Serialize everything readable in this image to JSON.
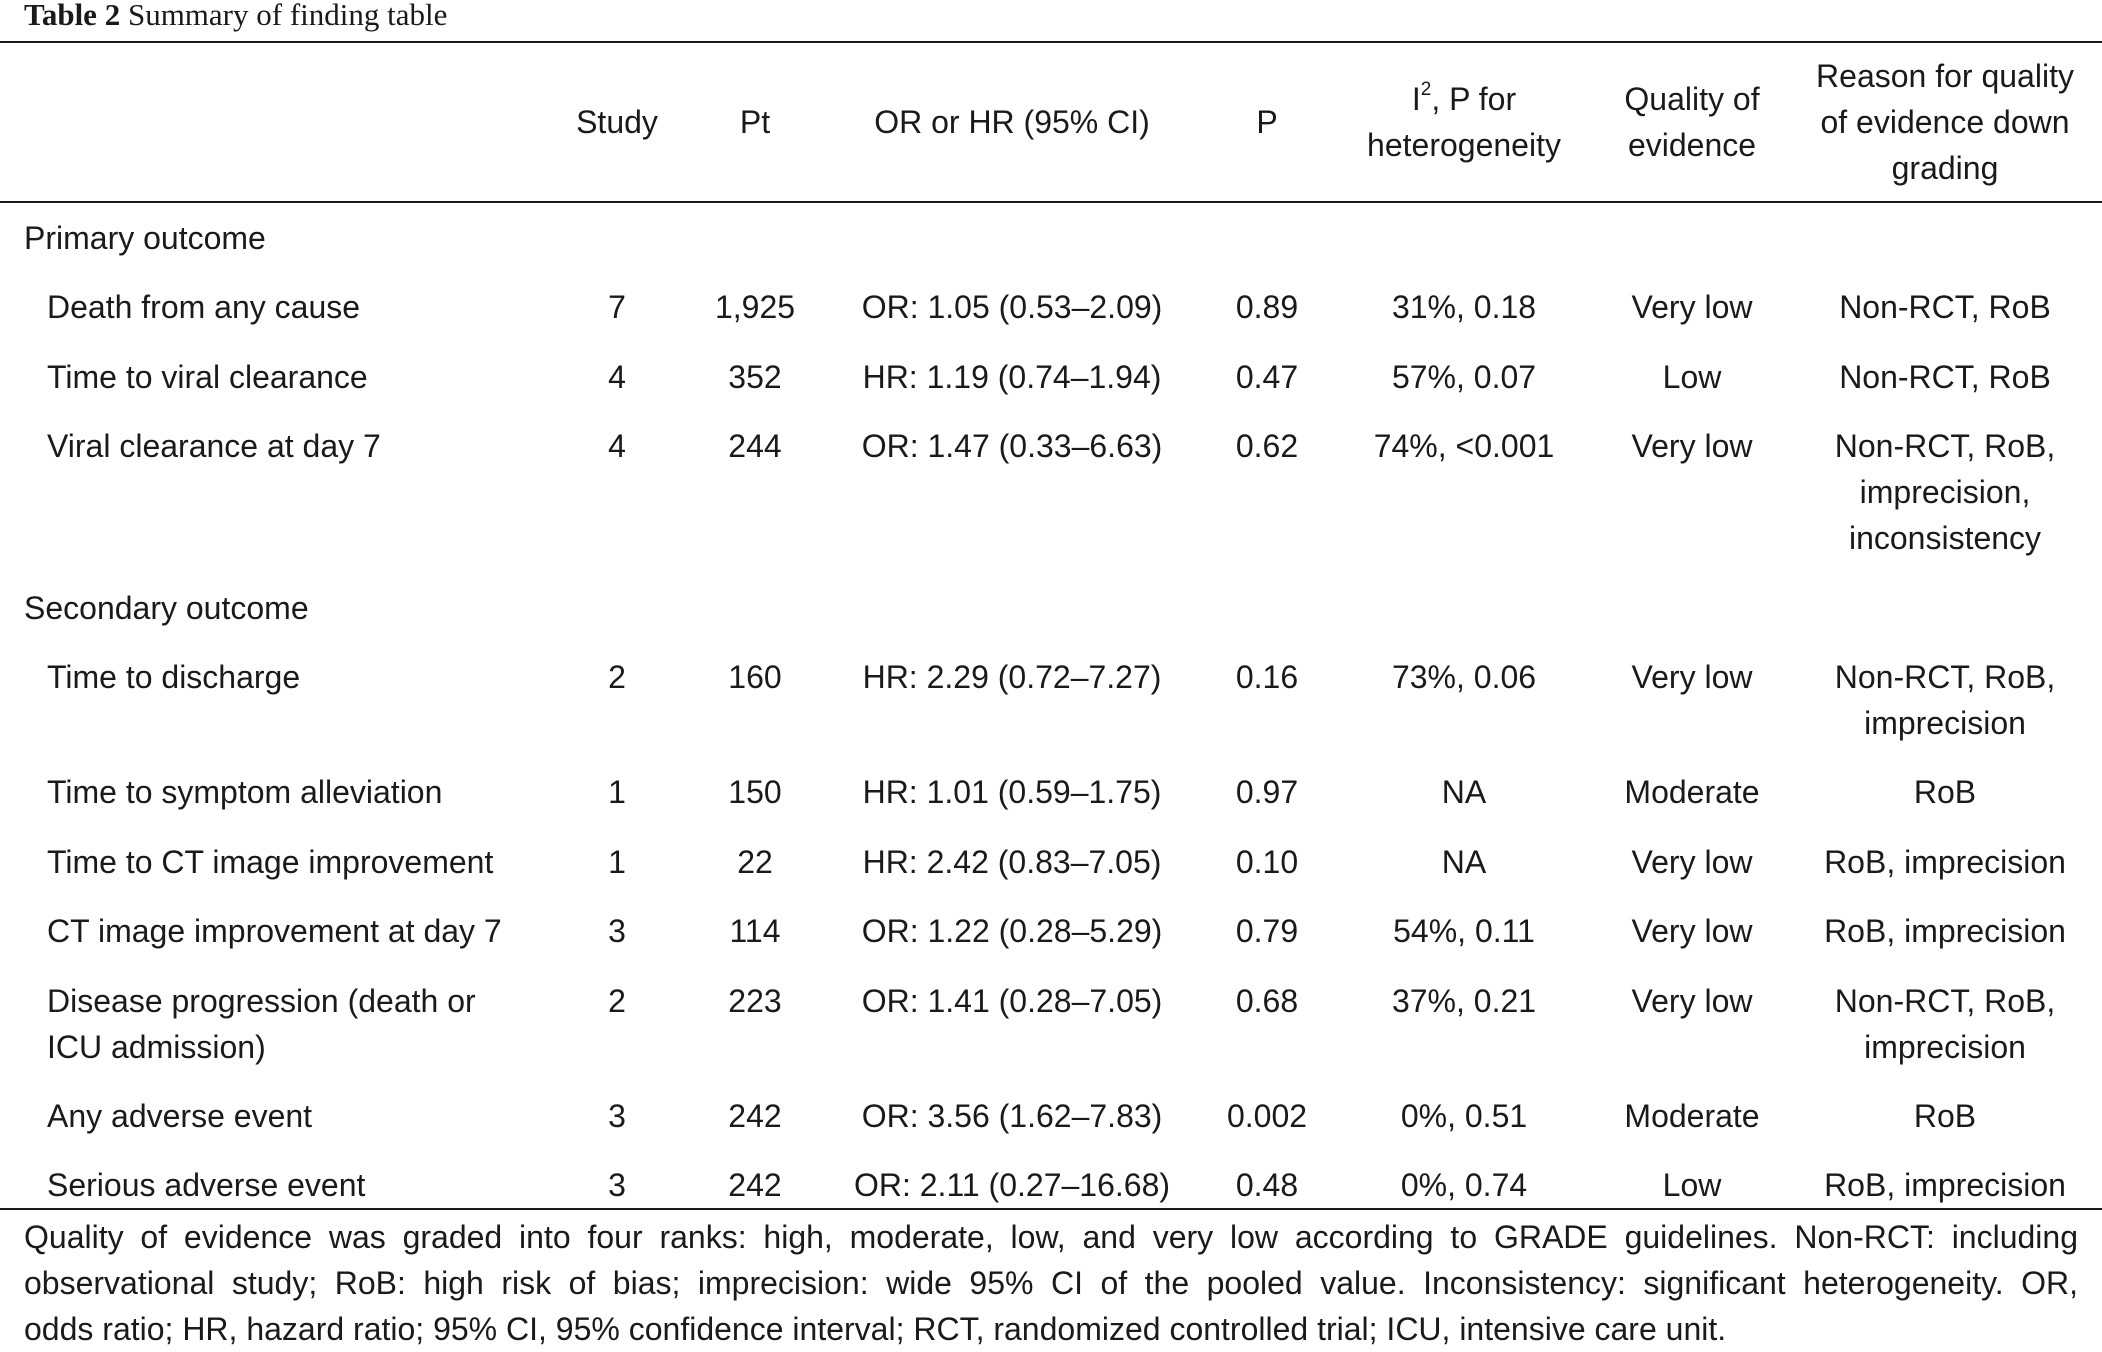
{
  "caption": {
    "label": "Table 2",
    "title": "Summary of finding table"
  },
  "header": {
    "study": "Study",
    "pt": "Pt",
    "or_hr": "OR or HR (95% CI)",
    "p": "P",
    "i2_base": "I",
    "i2_sup": "2",
    "i2_rest": ", P for",
    "i2_line2": "heterogeneity",
    "quality_line1": "Quality of",
    "quality_line2": "evidence",
    "reason_line1": "Reason for quality",
    "reason_line2": "of evidence down",
    "reason_line3": "grading"
  },
  "sections": [
    {
      "title": "Primary outcome",
      "rows": [
        {
          "outcome": [
            "Death from any cause"
          ],
          "study": "7",
          "pt": "1,925",
          "estimate": "OR: 1.05 (0.53–2.09)",
          "p": "0.89",
          "het": "31%, 0.18",
          "quality": "Very low",
          "reason": [
            "Non-RCT, RoB"
          ]
        },
        {
          "outcome": [
            "Time to viral clearance"
          ],
          "study": "4",
          "pt": "352",
          "estimate": "HR: 1.19 (0.74–1.94)",
          "p": "0.47",
          "het": "57%, 0.07",
          "quality": "Low",
          "reason": [
            "Non-RCT, RoB"
          ]
        },
        {
          "outcome": [
            "Viral clearance at day 7"
          ],
          "study": "4",
          "pt": "244",
          "estimate": "OR: 1.47 (0.33–6.63)",
          "p": "0.62",
          "het": "74%, <0.001",
          "quality": "Very low",
          "reason": [
            "Non-RCT, RoB,",
            "imprecision,",
            "inconsistency"
          ]
        }
      ]
    },
    {
      "title": "Secondary outcome",
      "rows": [
        {
          "outcome": [
            "Time to discharge"
          ],
          "study": "2",
          "pt": "160",
          "estimate": "HR: 2.29 (0.72–7.27)",
          "p": "0.16",
          "het": "73%, 0.06",
          "quality": "Very low",
          "reason": [
            "Non-RCT, RoB,",
            "imprecision"
          ]
        },
        {
          "outcome": [
            "Time to symptom alleviation"
          ],
          "study": "1",
          "pt": "150",
          "estimate": "HR: 1.01 (0.59–1.75)",
          "p": "0.97",
          "het": "NA",
          "quality": "Moderate",
          "reason": [
            "RoB"
          ]
        },
        {
          "outcome": [
            "Time to CT image improvement"
          ],
          "study": "1",
          "pt": "22",
          "estimate": "HR: 2.42 (0.83–7.05)",
          "p": "0.10",
          "het": "NA",
          "quality": "Very low",
          "reason": [
            "RoB, imprecision"
          ]
        },
        {
          "outcome": [
            "CT image improvement at day 7"
          ],
          "study": "3",
          "pt": "114",
          "estimate": "OR: 1.22 (0.28–5.29)",
          "p": "0.79",
          "het": "54%, 0.11",
          "quality": "Very low",
          "reason": [
            "RoB, imprecision"
          ]
        },
        {
          "outcome": [
            "Disease progression (death or",
            "ICU admission)"
          ],
          "study": "2",
          "pt": "223",
          "estimate": "OR: 1.41 (0.28–7.05)",
          "p": "0.68",
          "het": "37%, 0.21",
          "quality": "Very low",
          "reason": [
            "Non-RCT, RoB,",
            "imprecision"
          ]
        },
        {
          "outcome": [
            "Any adverse event"
          ],
          "study": "3",
          "pt": "242",
          "estimate": "OR: 3.56 (1.62–7.83)",
          "p": "0.002",
          "het": "0%, 0.51",
          "quality": "Moderate",
          "reason": [
            "RoB"
          ]
        },
        {
          "outcome": [
            "Serious adverse event"
          ],
          "study": "3",
          "pt": "242",
          "estimate": "OR: 2.11 (0.27–16.68)",
          "p": "0.48",
          "het": "0%, 0.74",
          "quality": "Low",
          "reason": [
            "RoB, imprecision"
          ]
        }
      ]
    }
  ],
  "footnote": [
    "Quality of evidence was graded into four ranks: high, moderate, low, and very low according to GRADE guidelines. Non-RCT: including",
    "observational study; RoB: high risk of bias; imprecision: wide 95% CI of the pooled value. Inconsistency: significant heterogeneity. OR,",
    "odds ratio; HR, hazard ratio; 95% CI, 95% confidence interval; RCT, randomized controlled trial; ICU, intensive care unit."
  ]
}
